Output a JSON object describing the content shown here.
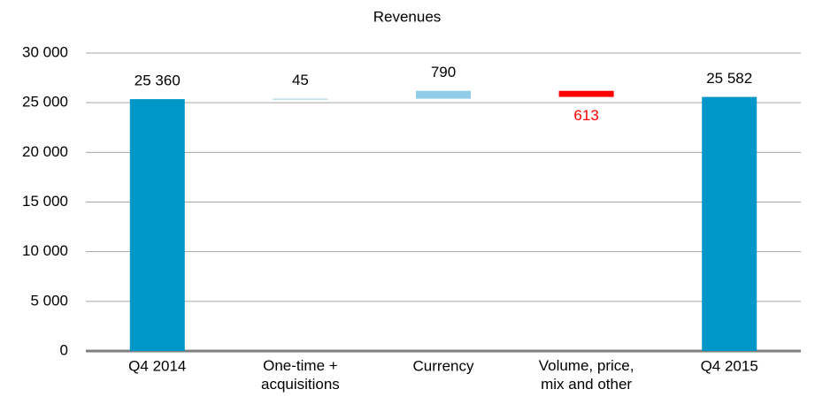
{
  "chart_data": {
    "type": "waterfall",
    "title": "Revenues",
    "categories": [
      "Q4 2014",
      "One-time +\nacquisitions",
      "Currency",
      "Volume, price,\nmix and other",
      "Q4 2015"
    ],
    "values": [
      25360,
      45,
      790,
      -613,
      25582
    ],
    "value_labels": [
      "25 360",
      "45",
      "790",
      "613",
      "25 582"
    ],
    "colors": [
      "#0096c8",
      "#92cde8",
      "#92cde8",
      "#ff0000",
      "#0096c8"
    ],
    "ylim": [
      0,
      30000
    ],
    "yticks": [
      0,
      {
        "value": 5000,
        "label": "5 000"
      },
      {
        "value": 10000,
        "label": "10 000"
      },
      {
        "value": 15000,
        "label": "15 000"
      },
      {
        "value": 20000,
        "label": "20 000"
      },
      {
        "value": 25000,
        "label": "25 000"
      },
      {
        "value": 30000,
        "label": "30 000"
      }
    ],
    "grid": true
  }
}
